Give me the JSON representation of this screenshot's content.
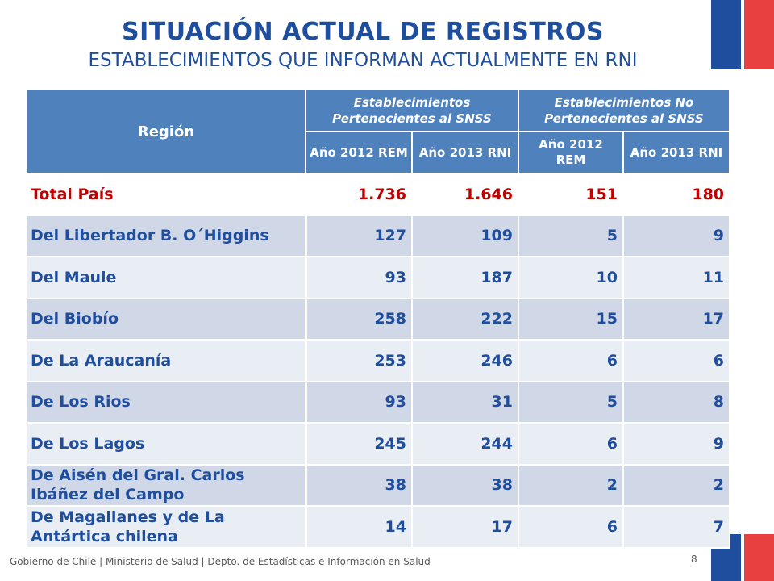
{
  "title": "SITUACIÓN ACTUAL DE REGISTROS",
  "subtitle": "ESTABLECIMIENTOS QUE INFORMAN ACTUALMENTE EN RNI",
  "table": {
    "header_region": "Región",
    "groups": [
      "Establecimientos Pertenecientes al SNSS",
      "Establecimientos No Pertenecientes al SNSS"
    ],
    "subheaders": [
      "Año 2012 REM",
      "Año 2013 RNI",
      "Año 2012 REM",
      "Año 2013 RNI"
    ],
    "rows": [
      {
        "region": "Total País",
        "values": [
          "1.736",
          "1.646",
          "151",
          "180"
        ]
      },
      {
        "region": "Del Libertador B. O´Higgins",
        "values": [
          "127",
          "109",
          "5",
          "9"
        ]
      },
      {
        "region": "Del Maule",
        "values": [
          "93",
          "187",
          "10",
          "11"
        ]
      },
      {
        "region": "Del Biobío",
        "values": [
          "258",
          "222",
          "15",
          "17"
        ]
      },
      {
        "region": "De La Araucanía",
        "values": [
          "253",
          "246",
          "6",
          "6"
        ]
      },
      {
        "region": "De Los Rios",
        "values": [
          "93",
          "31",
          "5",
          "8"
        ]
      },
      {
        "region": "De Los Lagos",
        "values": [
          "245",
          "244",
          "6",
          "9"
        ]
      },
      {
        "region": "De Aisén del Gral. Carlos Ibáñez del Campo",
        "values": [
          "38",
          "38",
          "2",
          "2"
        ]
      },
      {
        "region": "De Magallanes y de La Antártica chilena",
        "values": [
          "14",
          "17",
          "6",
          "7"
        ]
      }
    ]
  },
  "footer": "Gobierno de Chile | Ministerio de Salud | Depto. de Estadísticas e Información en Salud",
  "page_number": "8",
  "colors": {
    "title": "#1f4e9e",
    "header_bg": "#4f81bd",
    "total_text": "#c00000",
    "row_alt": "#d0d8e8",
    "row_plain": "#e9edf4",
    "flag_blue": "#1f4e9e",
    "flag_red": "#e84040"
  }
}
